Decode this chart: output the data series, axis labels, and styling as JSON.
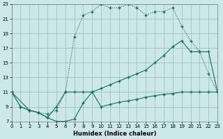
{
  "xlabel": "Humidex (Indice chaleur)",
  "bg_color": "#cce8e8",
  "grid_color": "#99bbbb",
  "line_color": "#1a6b60",
  "xlim": [
    0,
    23
  ],
  "ylim": [
    7,
    23
  ],
  "xticks": [
    0,
    1,
    2,
    3,
    4,
    5,
    6,
    7,
    8,
    9,
    10,
    11,
    12,
    13,
    14,
    15,
    16,
    17,
    18,
    19,
    20,
    21,
    22,
    23
  ],
  "yticks": [
    7,
    9,
    11,
    13,
    15,
    17,
    19,
    21,
    23
  ],
  "line_dotted": {
    "x": [
      0,
      1,
      2,
      3,
      4,
      5,
      6,
      7,
      8,
      9,
      10,
      11,
      12,
      13,
      14,
      15,
      16,
      17,
      18,
      19,
      20,
      21,
      22,
      23
    ],
    "y": [
      11,
      9,
      8.5,
      8.2,
      8.0,
      8.5,
      11.0,
      18.5,
      21.5,
      22.0,
      23.0,
      22.5,
      22.5,
      23.0,
      22.5,
      21.5,
      22.0,
      22.0,
      22.5,
      20.0,
      18.0,
      16.5,
      13.5,
      11.0
    ]
  },
  "line_mid": {
    "x": [
      0,
      2,
      3,
      4,
      5,
      6,
      7,
      8,
      9,
      10,
      11,
      12,
      13,
      14,
      15,
      16,
      17,
      18,
      19,
      20,
      21,
      22,
      23
    ],
    "y": [
      11,
      8.5,
      8.2,
      7.5,
      9.0,
      11.0,
      11.0,
      11.0,
      11.0,
      11.5,
      12.0,
      12.5,
      13.0,
      13.5,
      14.0,
      15.0,
      16.0,
      17.2,
      18.0,
      16.5,
      16.5,
      16.5,
      11.0
    ]
  },
  "line_low": {
    "x": [
      0,
      1,
      2,
      3,
      4,
      5,
      6,
      7,
      8,
      9,
      10,
      11,
      12,
      13,
      14,
      15,
      16,
      17,
      18,
      19,
      20,
      21,
      22,
      23
    ],
    "y": [
      11,
      9.0,
      8.5,
      8.2,
      7.5,
      7.0,
      7.0,
      7.3,
      9.5,
      11.0,
      9.0,
      9.3,
      9.6,
      9.8,
      10.0,
      10.3,
      10.5,
      10.7,
      10.8,
      11.0,
      11.0,
      11.0,
      11.0,
      11.0
    ]
  }
}
